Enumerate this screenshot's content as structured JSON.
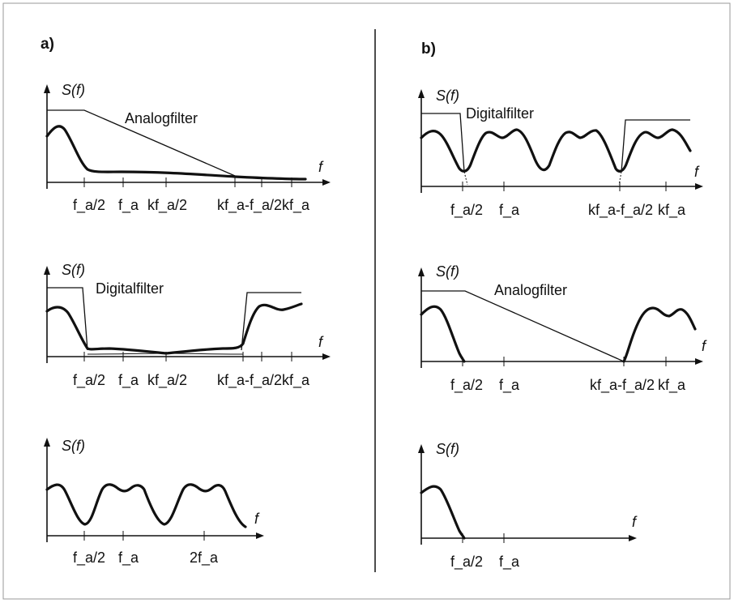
{
  "panels": {
    "a": {
      "label": "a)",
      "plots": [
        {
          "ylabel": "S(f)",
          "xlabel": "f",
          "filter_label": "Analogfilter",
          "ticks": [
            "f_a/2",
            "f_a",
            "kf_a/2",
            "kf_a-f_a/2",
            "kf_a"
          ]
        },
        {
          "ylabel": "S(f)",
          "xlabel": "f",
          "filter_label": "Digitalfilter",
          "ticks": [
            "f_a/2",
            "f_a",
            "kf_a/2",
            "kf_a-f_a/2",
            "kf_a"
          ]
        },
        {
          "ylabel": "S(f)",
          "xlabel": "f",
          "ticks": [
            "f_a/2",
            "f_a",
            "2f_a"
          ]
        }
      ]
    },
    "b": {
      "label": "b)",
      "plots": [
        {
          "ylabel": "S(f)",
          "xlabel": "f",
          "filter_label": "Digitalfilter",
          "ticks": [
            "f_a/2",
            "f_a",
            "kf_a-f_a/2",
            "kf_a"
          ]
        },
        {
          "ylabel": "S(f)",
          "xlabel": "f",
          "filter_label": "Analogfilter",
          "ticks": [
            "f_a/2",
            "f_a",
            "kf_a-f_a/2",
            "kf_a"
          ]
        },
        {
          "ylabel": "S(f)",
          "xlabel": "f",
          "ticks": [
            "f_a/2",
            "f_a"
          ]
        }
      ]
    }
  }
}
